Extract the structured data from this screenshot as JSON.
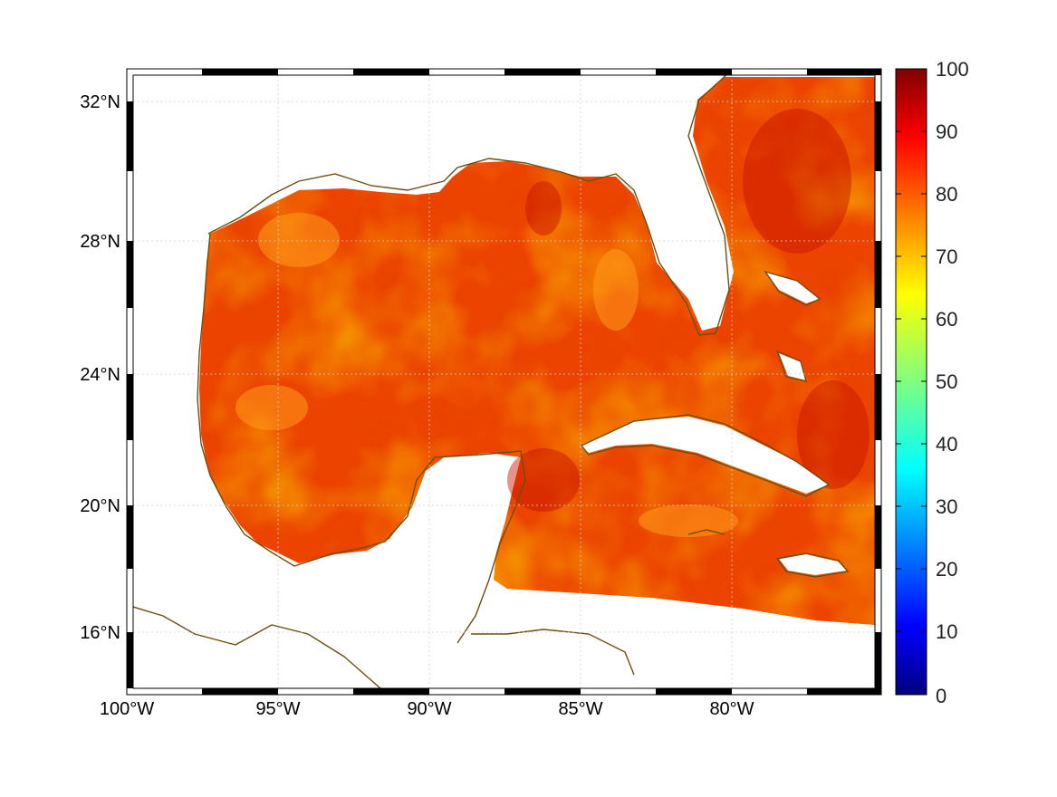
{
  "map": {
    "x_ticks": [
      "100°W",
      "95°W",
      "90°W",
      "85°W",
      "80°W"
    ],
    "y_ticks": [
      "32°N",
      "28°N",
      "24°N",
      "20°N",
      "16°N"
    ],
    "extent": {
      "lon": [
        -100,
        -75
      ],
      "lat": [
        14.5,
        33
      ]
    },
    "grid": true
  },
  "colorbar": {
    "ticks": [
      "100",
      "90",
      "80",
      "70",
      "60",
      "50",
      "40",
      "30",
      "20",
      "10",
      "0"
    ],
    "range": [
      0,
      100
    ],
    "colormap": "jet"
  },
  "colors": {
    "coastline": "#6b4e10",
    "field_high": "#d81800",
    "field_mid": "#f05a00",
    "field_low": "#ffb000"
  }
}
